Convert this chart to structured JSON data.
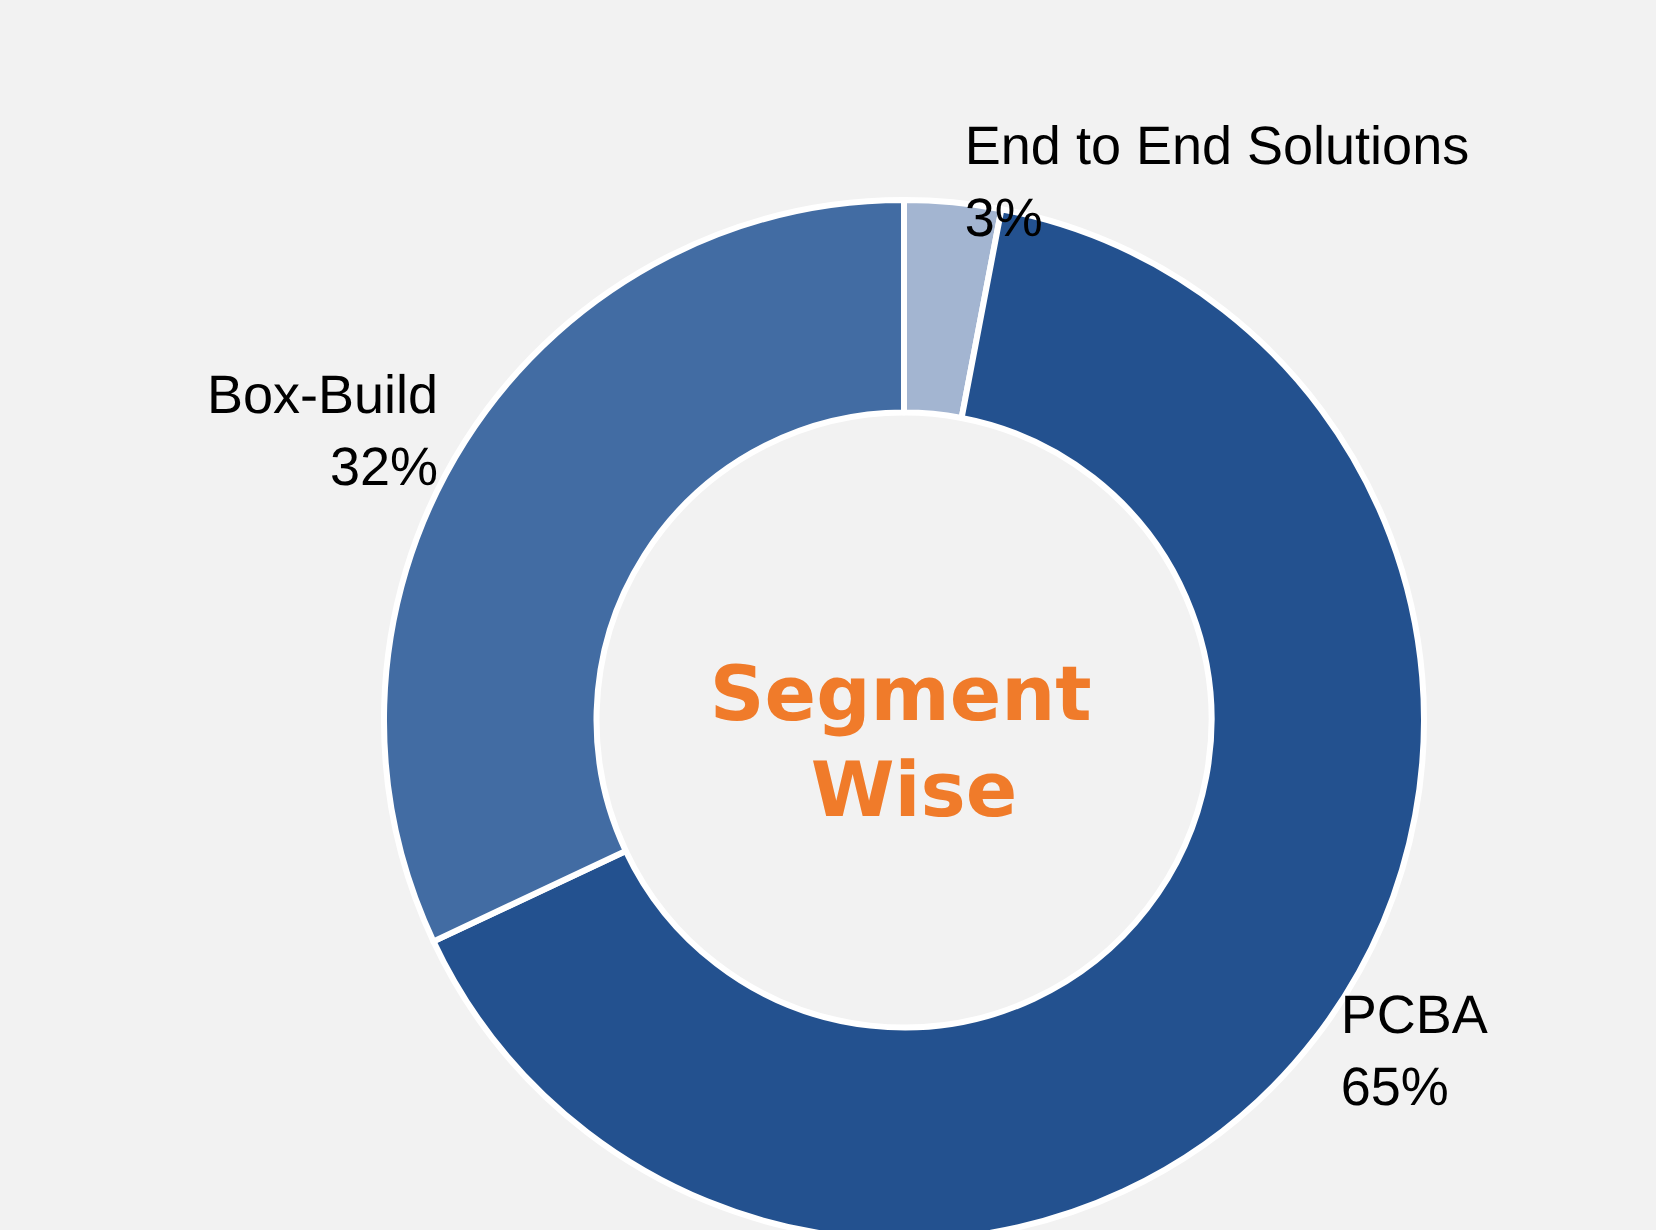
{
  "chart_data": {
    "type": "donut",
    "title": "Segment Wise",
    "categories": [
      "End to End Solutions",
      "PCBA",
      "Box-Build"
    ],
    "values": [
      3,
      65,
      32
    ],
    "colors": [
      "#a3b5d1",
      "#23518f",
      "#426ca3"
    ],
    "value_labels": [
      "3%",
      "65%",
      "32%"
    ],
    "legend": false
  }
}
